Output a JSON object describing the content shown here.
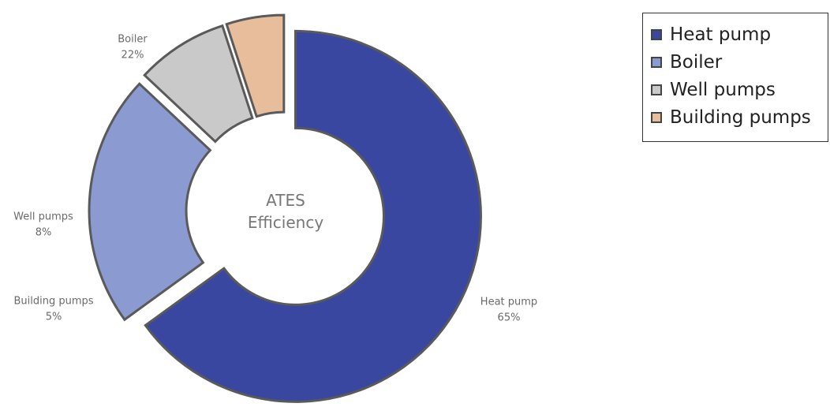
{
  "chart_data": {
    "type": "donut",
    "title": "ATES Efficiency",
    "categories": [
      "Heat pump",
      "Boiler",
      "Well pumps",
      "Building pumps"
    ],
    "values": [
      65,
      22,
      8,
      5
    ],
    "value_labels": [
      "65%",
      "22%",
      "8%",
      "5%"
    ],
    "colors": [
      "#3a47a0",
      "#8b9bd1",
      "#c9c9c9",
      "#e8bd9b"
    ],
    "legend": "top-right"
  }
}
